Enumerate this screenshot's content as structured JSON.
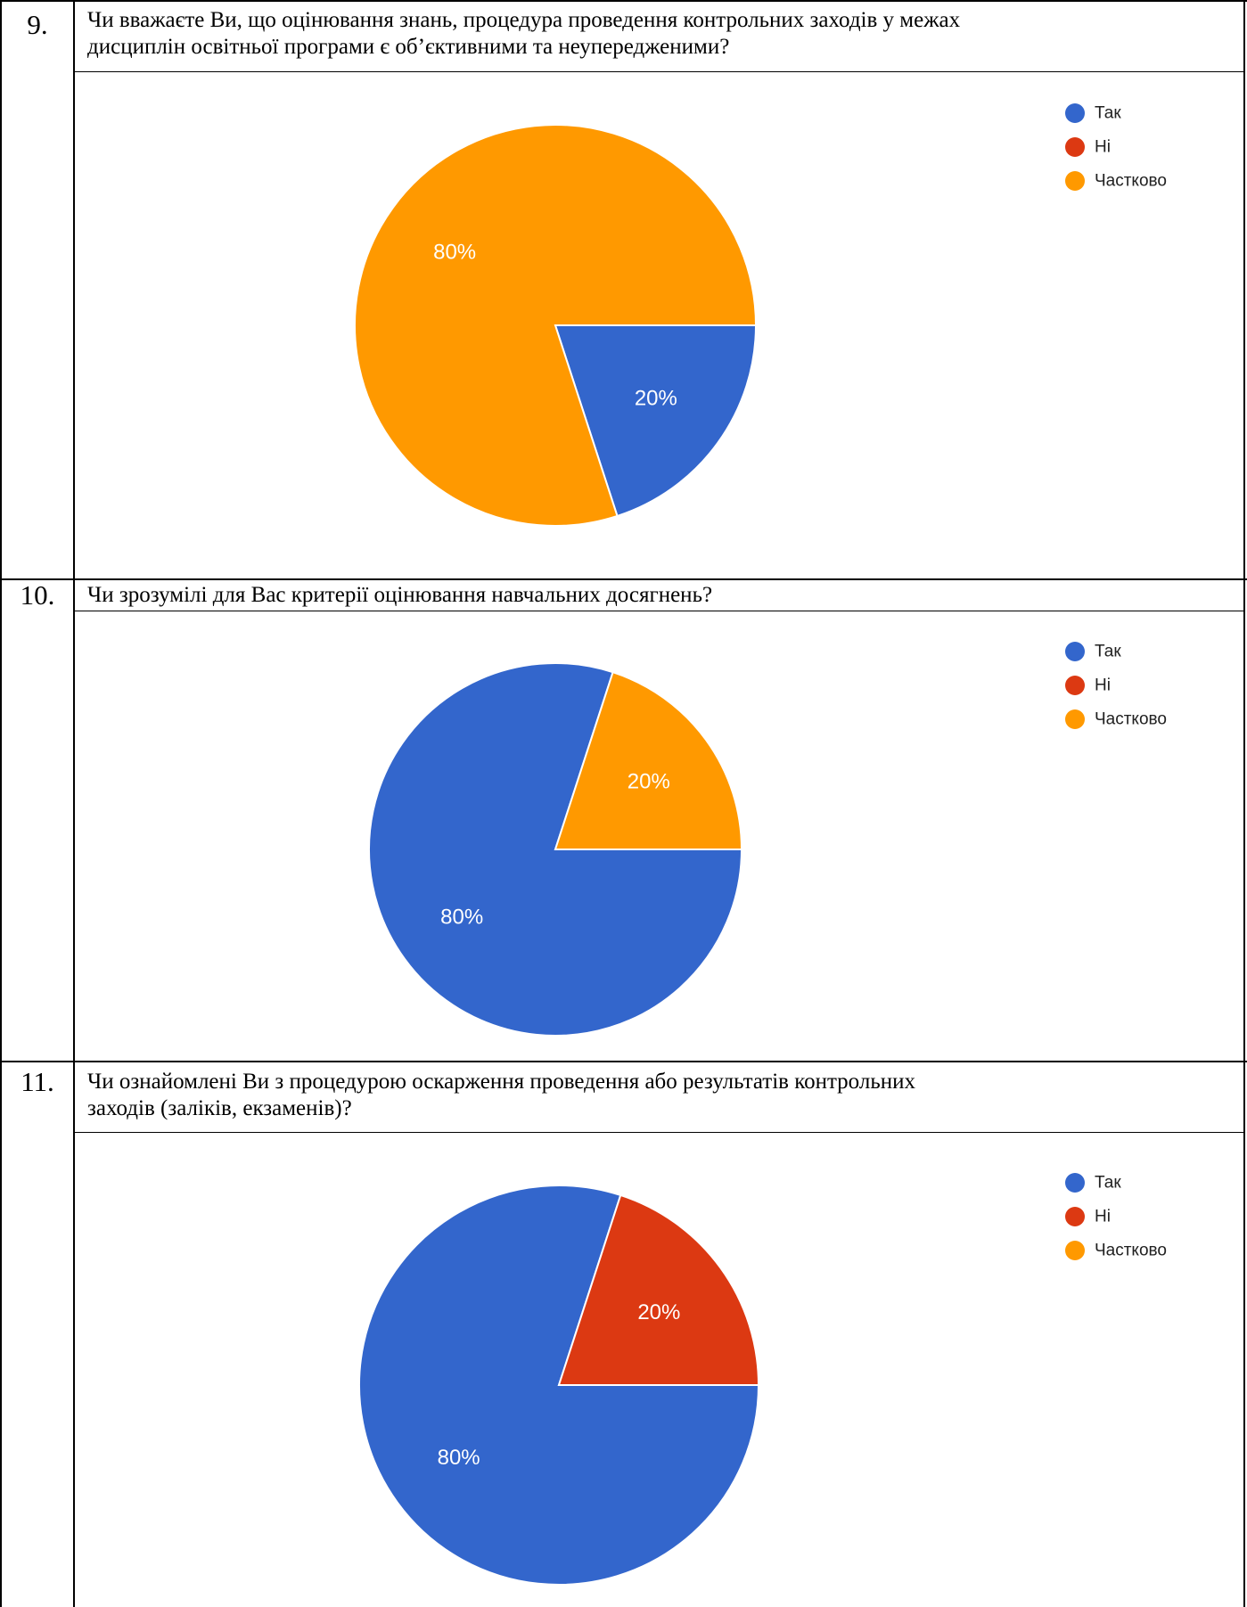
{
  "questions": [
    {
      "number": "9.",
      "text_lines": [
        "Чи вважаєте Ви, що оцінювання знань, процедура проведення контрольних заходів у межах",
        "дисциплін освітньої програми є об’єктивними та неупередженими?"
      ],
      "chart_data": {
        "type": "pie",
        "categories": [
          "Так",
          "Ні",
          "Частково"
        ],
        "values": [
          20,
          0,
          80
        ],
        "labels": [
          "20%",
          "",
          "80%"
        ],
        "colors": [
          "#3366cc",
          "#dc3912",
          "#ff9900"
        ],
        "legend": "top-right"
      }
    },
    {
      "number": "10.",
      "text_lines": [
        "Чи зрозумілі для Вас критерії оцінювання навчальних досягнень?"
      ],
      "chart_data": {
        "type": "pie",
        "categories": [
          "Так",
          "Ні",
          "Частково"
        ],
        "values": [
          80,
          0,
          20
        ],
        "labels": [
          "80%",
          "",
          "20%"
        ],
        "colors": [
          "#3366cc",
          "#dc3912",
          "#ff9900"
        ],
        "legend": "top-right"
      }
    },
    {
      "number": "11.",
      "text_lines": [
        "Чи ознайомлені Ви з процедурою оскарження проведення або результатів контрольних",
        "заходів (заліків, екзаменів)?"
      ],
      "chart_data": {
        "type": "pie",
        "categories": [
          "Так",
          "Ні",
          "Частково"
        ],
        "values": [
          80,
          20,
          0
        ],
        "labels": [
          "80%",
          "20%",
          ""
        ],
        "colors": [
          "#3366cc",
          "#dc3912",
          "#ff9900"
        ],
        "legend": "top-right"
      }
    }
  ]
}
